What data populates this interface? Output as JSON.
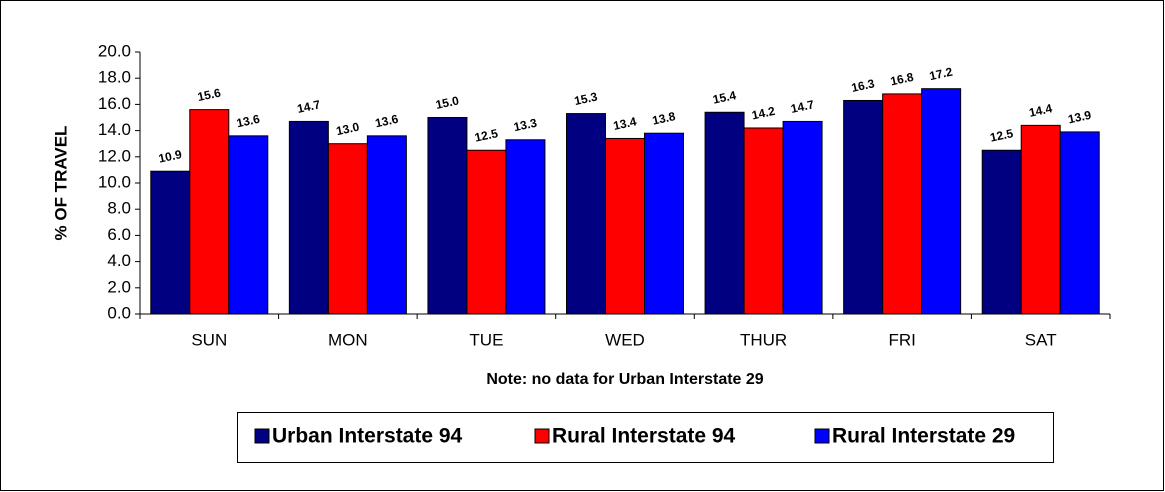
{
  "chart_data": {
    "type": "bar",
    "y_label": "% OF TRAVEL",
    "note": "Note: no data for Urban Interstate 29",
    "categories": [
      "SUN",
      "MON",
      "TUE",
      "WED",
      "THUR",
      "FRI",
      "SAT"
    ],
    "series": [
      {
        "name": "Urban Interstate 94",
        "color": "#000080",
        "values": [
          10.9,
          14.7,
          15.0,
          15.3,
          15.4,
          16.3,
          12.5
        ],
        "value_labels": [
          "10.9",
          "14.7",
          "15.0",
          "15.3",
          "15.4",
          "16.3",
          "12.5"
        ]
      },
      {
        "name": "Rural Interstate 94",
        "color": "#ff0000",
        "values": [
          15.6,
          13.0,
          12.5,
          13.4,
          14.2,
          16.8,
          14.4
        ],
        "value_labels": [
          "15.6",
          "13.0",
          "12.5",
          "13.4",
          "14.2",
          "16.8",
          "14.4"
        ]
      },
      {
        "name": "Rural Interstate 29",
        "color": "#0000ff",
        "values": [
          13.6,
          13.6,
          13.3,
          13.8,
          14.7,
          17.2,
          13.9
        ],
        "value_labels": [
          "13.6",
          "13.6",
          "13.3",
          "13.8",
          "14.7",
          "17.2",
          "13.9"
        ]
      }
    ],
    "ylim": [
      0,
      20
    ],
    "yticks": [
      {
        "value": 0,
        "label": "0.0"
      },
      {
        "value": 2,
        "label": "2.0"
      },
      {
        "value": 4,
        "label": "4.0"
      },
      {
        "value": 6,
        "label": "6.0"
      },
      {
        "value": 8,
        "label": "8.0"
      },
      {
        "value": 10,
        "label": "10.0"
      },
      {
        "value": 12,
        "label": "12.0"
      },
      {
        "value": 14,
        "label": "14.0"
      },
      {
        "value": 16,
        "label": "16.0"
      },
      {
        "value": 18,
        "label": "18.0"
      },
      {
        "value": 20,
        "label": "20.0"
      }
    ],
    "legend": "bottom"
  }
}
